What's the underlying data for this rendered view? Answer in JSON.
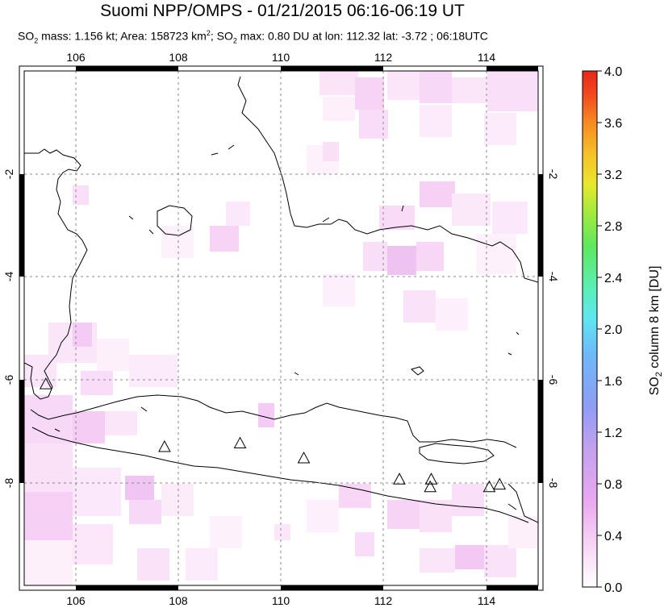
{
  "header": {
    "title": "Suomi NPP/OMPS - 01/21/2015 06:16-06:19 UT",
    "subtitle_parts": {
      "so2_a": "SO",
      "so2_a_sub": "2",
      "mass": " mass: 1.156 kt; Area: 158723 km",
      "area_sup": "2",
      "sep": "; ",
      "so2_b": "SO",
      "so2_b_sub": "2",
      "max": " max: 0.80 DU at lon: 112.32 lat: -3.72 ; 06:18UTC"
    }
  },
  "map": {
    "lon_ticks": [
      "106",
      "108",
      "110",
      "112",
      "114"
    ],
    "lat_ticks": [
      "-2",
      "-4",
      "-6",
      "-8"
    ],
    "extent": {
      "lon_min": 105,
      "lon_max": 115,
      "lat_min": -10,
      "lat_max": 0
    },
    "volcano_markers": [
      {
        "lon": 105.42,
        "lat": -6.1
      },
      {
        "lon": 107.73,
        "lat": -7.32
      },
      {
        "lon": 109.2,
        "lat": -7.25
      },
      {
        "lon": 110.44,
        "lat": -7.54
      },
      {
        "lon": 112.3,
        "lat": -7.95
      },
      {
        "lon": 112.92,
        "lat": -7.95
      },
      {
        "lon": 112.9,
        "lat": -8.1
      },
      {
        "lon": 114.05,
        "lat": -8.1
      },
      {
        "lon": 114.25,
        "lat": -8.05
      }
    ],
    "so2_max_location": {
      "lon": 112.32,
      "lat": -3.72
    }
  },
  "colorbar": {
    "label_main": "SO",
    "label_sub": "2",
    "label_rest": " column 8 km [DU]",
    "ticks": [
      "4.0",
      "3.6",
      "3.2",
      "2.8",
      "2.4",
      "2.0",
      "1.6",
      "1.2",
      "0.8",
      "0.4",
      "0.0"
    ],
    "colors": [
      "#ffffff",
      "#f7d6f5",
      "#e9a7ef",
      "#c2a1ef",
      "#8f9cf6",
      "#6fb8f8",
      "#5fe6f2",
      "#5cefb4",
      "#5fe85f",
      "#a6ea3c",
      "#e8e82d",
      "#f6c02a",
      "#f68a22",
      "#f24e1e",
      "#e6261a"
    ]
  }
}
